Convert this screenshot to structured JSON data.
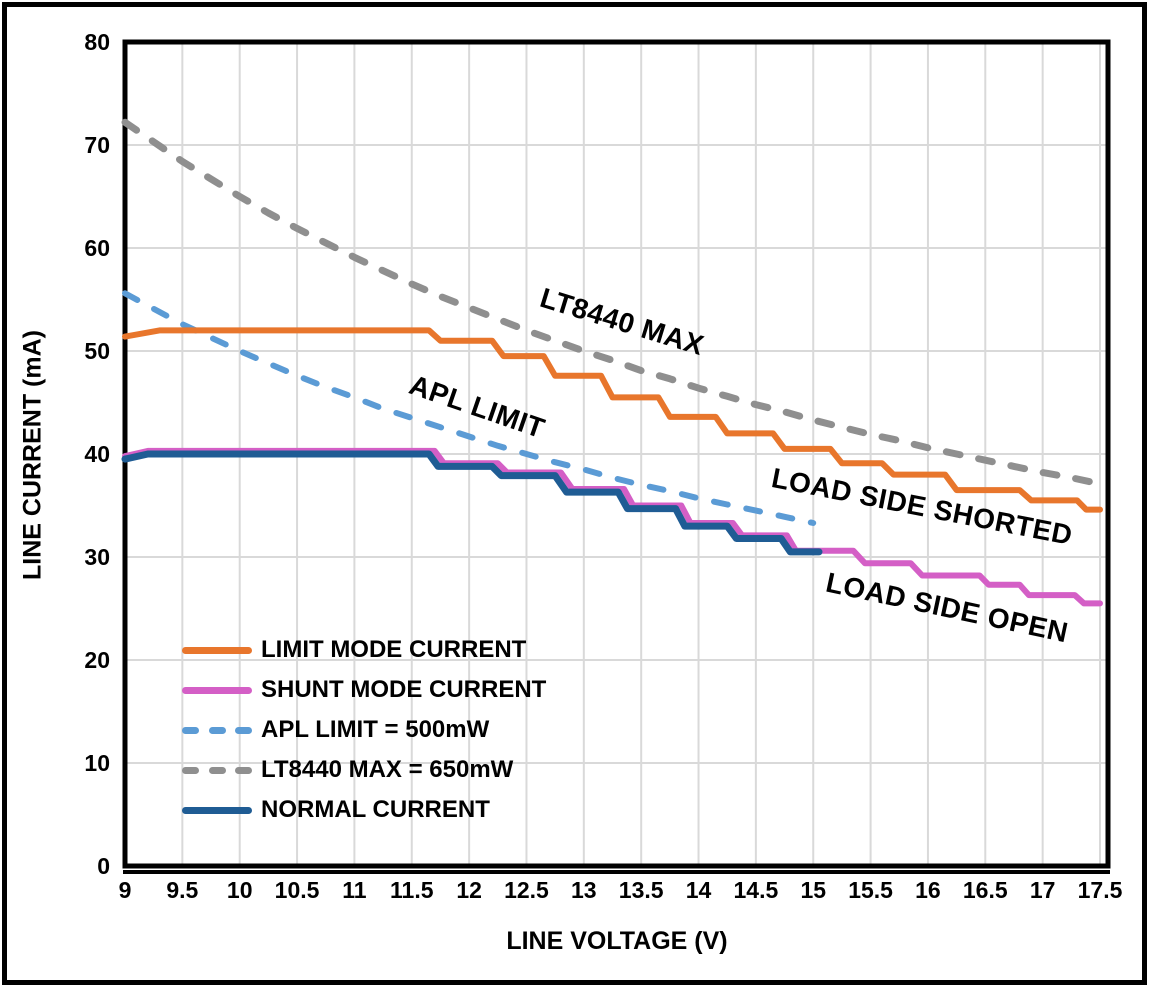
{
  "chart_data": {
    "type": "line",
    "xlabel": "LINE VOLTAGE (V)",
    "ylabel": "LINE CURRENT (mA)",
    "xlim": [
      9,
      17.5
    ],
    "ylim": [
      0,
      80
    ],
    "x_ticks": [
      9,
      9.5,
      10,
      10.5,
      11,
      11.5,
      12,
      12.5,
      13,
      13.5,
      14,
      14.5,
      15,
      15.5,
      16,
      16.5,
      17,
      17.5
    ],
    "y_ticks": [
      0,
      10,
      20,
      30,
      40,
      50,
      60,
      70,
      80
    ],
    "grid": true,
    "colors": {
      "gridline": "#D9D9D9",
      "axis": "#000000",
      "text": "#000000"
    },
    "annotations": [
      {
        "text": "LT8440 MAX"
      },
      {
        "text": "APL LIMIT"
      },
      {
        "text": "LOAD SIDE SHORTED"
      },
      {
        "text": "LOAD SIDE OPEN"
      }
    ],
    "series": [
      {
        "name": "LIMIT MODE CURRENT",
        "color": "#E8762C",
        "style": "solid",
        "width": 6,
        "points": [
          [
            9,
            51.4
          ],
          [
            9.3,
            52
          ],
          [
            11.65,
            52
          ],
          [
            11.75,
            51
          ],
          [
            12.2,
            51
          ],
          [
            12.3,
            49.5
          ],
          [
            12.65,
            49.5
          ],
          [
            12.75,
            47.6
          ],
          [
            13.15,
            47.6
          ],
          [
            13.25,
            45.5
          ],
          [
            13.65,
            45.5
          ],
          [
            13.75,
            43.6
          ],
          [
            14.15,
            43.6
          ],
          [
            14.25,
            42
          ],
          [
            14.65,
            42
          ],
          [
            14.75,
            40.5
          ],
          [
            15.15,
            40.5
          ],
          [
            15.25,
            39.1
          ],
          [
            15.6,
            39.1
          ],
          [
            15.7,
            38
          ],
          [
            16.15,
            38
          ],
          [
            16.25,
            36.5
          ],
          [
            16.8,
            36.5
          ],
          [
            16.9,
            35.5
          ],
          [
            17.3,
            35.5
          ],
          [
            17.38,
            34.6
          ],
          [
            17.5,
            34.6
          ]
        ]
      },
      {
        "name": "SHUNT MODE CURRENT",
        "color": "#D45FC6",
        "style": "solid",
        "width": 6,
        "points": [
          [
            9,
            39.8
          ],
          [
            9.2,
            40.3
          ],
          [
            11.7,
            40.3
          ],
          [
            11.78,
            39.1
          ],
          [
            12.25,
            39.1
          ],
          [
            12.33,
            38.2
          ],
          [
            12.8,
            38.2
          ],
          [
            12.9,
            36.6
          ],
          [
            13.35,
            36.6
          ],
          [
            13.43,
            35
          ],
          [
            13.85,
            35
          ],
          [
            13.93,
            33.3
          ],
          [
            14.3,
            33.3
          ],
          [
            14.38,
            32.1
          ],
          [
            14.77,
            32.1
          ],
          [
            14.85,
            30.6
          ],
          [
            15.35,
            30.6
          ],
          [
            15.45,
            29.4
          ],
          [
            15.85,
            29.4
          ],
          [
            15.95,
            28.2
          ],
          [
            16.45,
            28.2
          ],
          [
            16.53,
            27.3
          ],
          [
            16.8,
            27.3
          ],
          [
            16.88,
            26.3
          ],
          [
            17.28,
            26.3
          ],
          [
            17.36,
            25.5
          ],
          [
            17.5,
            25.5
          ]
        ]
      },
      {
        "name": "APL LIMIT = 500mW",
        "color": "#5B9BD5",
        "style": "dashed",
        "width": 6,
        "points": [
          [
            9,
            55.6
          ],
          [
            9.25,
            54.1
          ],
          [
            9.5,
            52.6
          ],
          [
            9.75,
            51.3
          ],
          [
            10,
            50
          ],
          [
            10.25,
            48.8
          ],
          [
            10.5,
            47.6
          ],
          [
            10.75,
            46.5
          ],
          [
            11,
            45.5
          ],
          [
            11.25,
            44.4
          ],
          [
            11.5,
            43.5
          ],
          [
            11.75,
            42.6
          ],
          [
            12,
            41.7
          ],
          [
            12.25,
            40.8
          ],
          [
            12.5,
            40
          ],
          [
            12.75,
            39.2
          ],
          [
            13,
            38.5
          ],
          [
            13.25,
            37.7
          ],
          [
            13.5,
            37
          ],
          [
            13.75,
            36.4
          ],
          [
            14,
            35.7
          ],
          [
            14.25,
            35.1
          ],
          [
            14.5,
            34.5
          ],
          [
            14.75,
            33.9
          ],
          [
            15,
            33.3
          ]
        ]
      },
      {
        "name": "LT8440 MAX = 650mW",
        "color": "#8F8F8F",
        "style": "dashed",
        "width": 7,
        "points": [
          [
            9,
            72.2
          ],
          [
            9.25,
            70.3
          ],
          [
            9.5,
            68.4
          ],
          [
            9.75,
            66.7
          ],
          [
            10,
            65
          ],
          [
            10.25,
            63.4
          ],
          [
            10.5,
            61.9
          ],
          [
            10.75,
            60.5
          ],
          [
            11,
            59.1
          ],
          [
            11.25,
            57.8
          ],
          [
            11.5,
            56.5
          ],
          [
            11.75,
            55.3
          ],
          [
            12,
            54.2
          ],
          [
            12.25,
            53.1
          ],
          [
            12.5,
            52
          ],
          [
            12.75,
            51
          ],
          [
            13,
            50
          ],
          [
            13.25,
            49.1
          ],
          [
            13.5,
            48.1
          ],
          [
            13.75,
            47.3
          ],
          [
            14,
            46.4
          ],
          [
            14.25,
            45.6
          ],
          [
            14.5,
            44.8
          ],
          [
            14.75,
            44.1
          ],
          [
            15,
            43.3
          ],
          [
            15.25,
            42.6
          ],
          [
            15.5,
            41.9
          ],
          [
            15.75,
            41.3
          ],
          [
            16,
            40.6
          ],
          [
            16.25,
            40
          ],
          [
            16.5,
            39.4
          ],
          [
            16.75,
            38.8
          ],
          [
            17,
            38.2
          ],
          [
            17.25,
            37.7
          ],
          [
            17.5,
            37.1
          ]
        ]
      },
      {
        "name": "NORMAL CURRENT",
        "color": "#1F5C94",
        "style": "solid",
        "width": 7,
        "points": [
          [
            9,
            39.5
          ],
          [
            9.2,
            40
          ],
          [
            11.65,
            40
          ],
          [
            11.73,
            38.8
          ],
          [
            12.2,
            38.8
          ],
          [
            12.28,
            37.9
          ],
          [
            12.75,
            37.9
          ],
          [
            12.85,
            36.3
          ],
          [
            13.3,
            36.3
          ],
          [
            13.38,
            34.7
          ],
          [
            13.8,
            34.7
          ],
          [
            13.88,
            33
          ],
          [
            14.25,
            33
          ],
          [
            14.33,
            31.8
          ],
          [
            14.72,
            31.8
          ],
          [
            14.8,
            30.5
          ],
          [
            15.05,
            30.5
          ]
        ]
      }
    ]
  }
}
